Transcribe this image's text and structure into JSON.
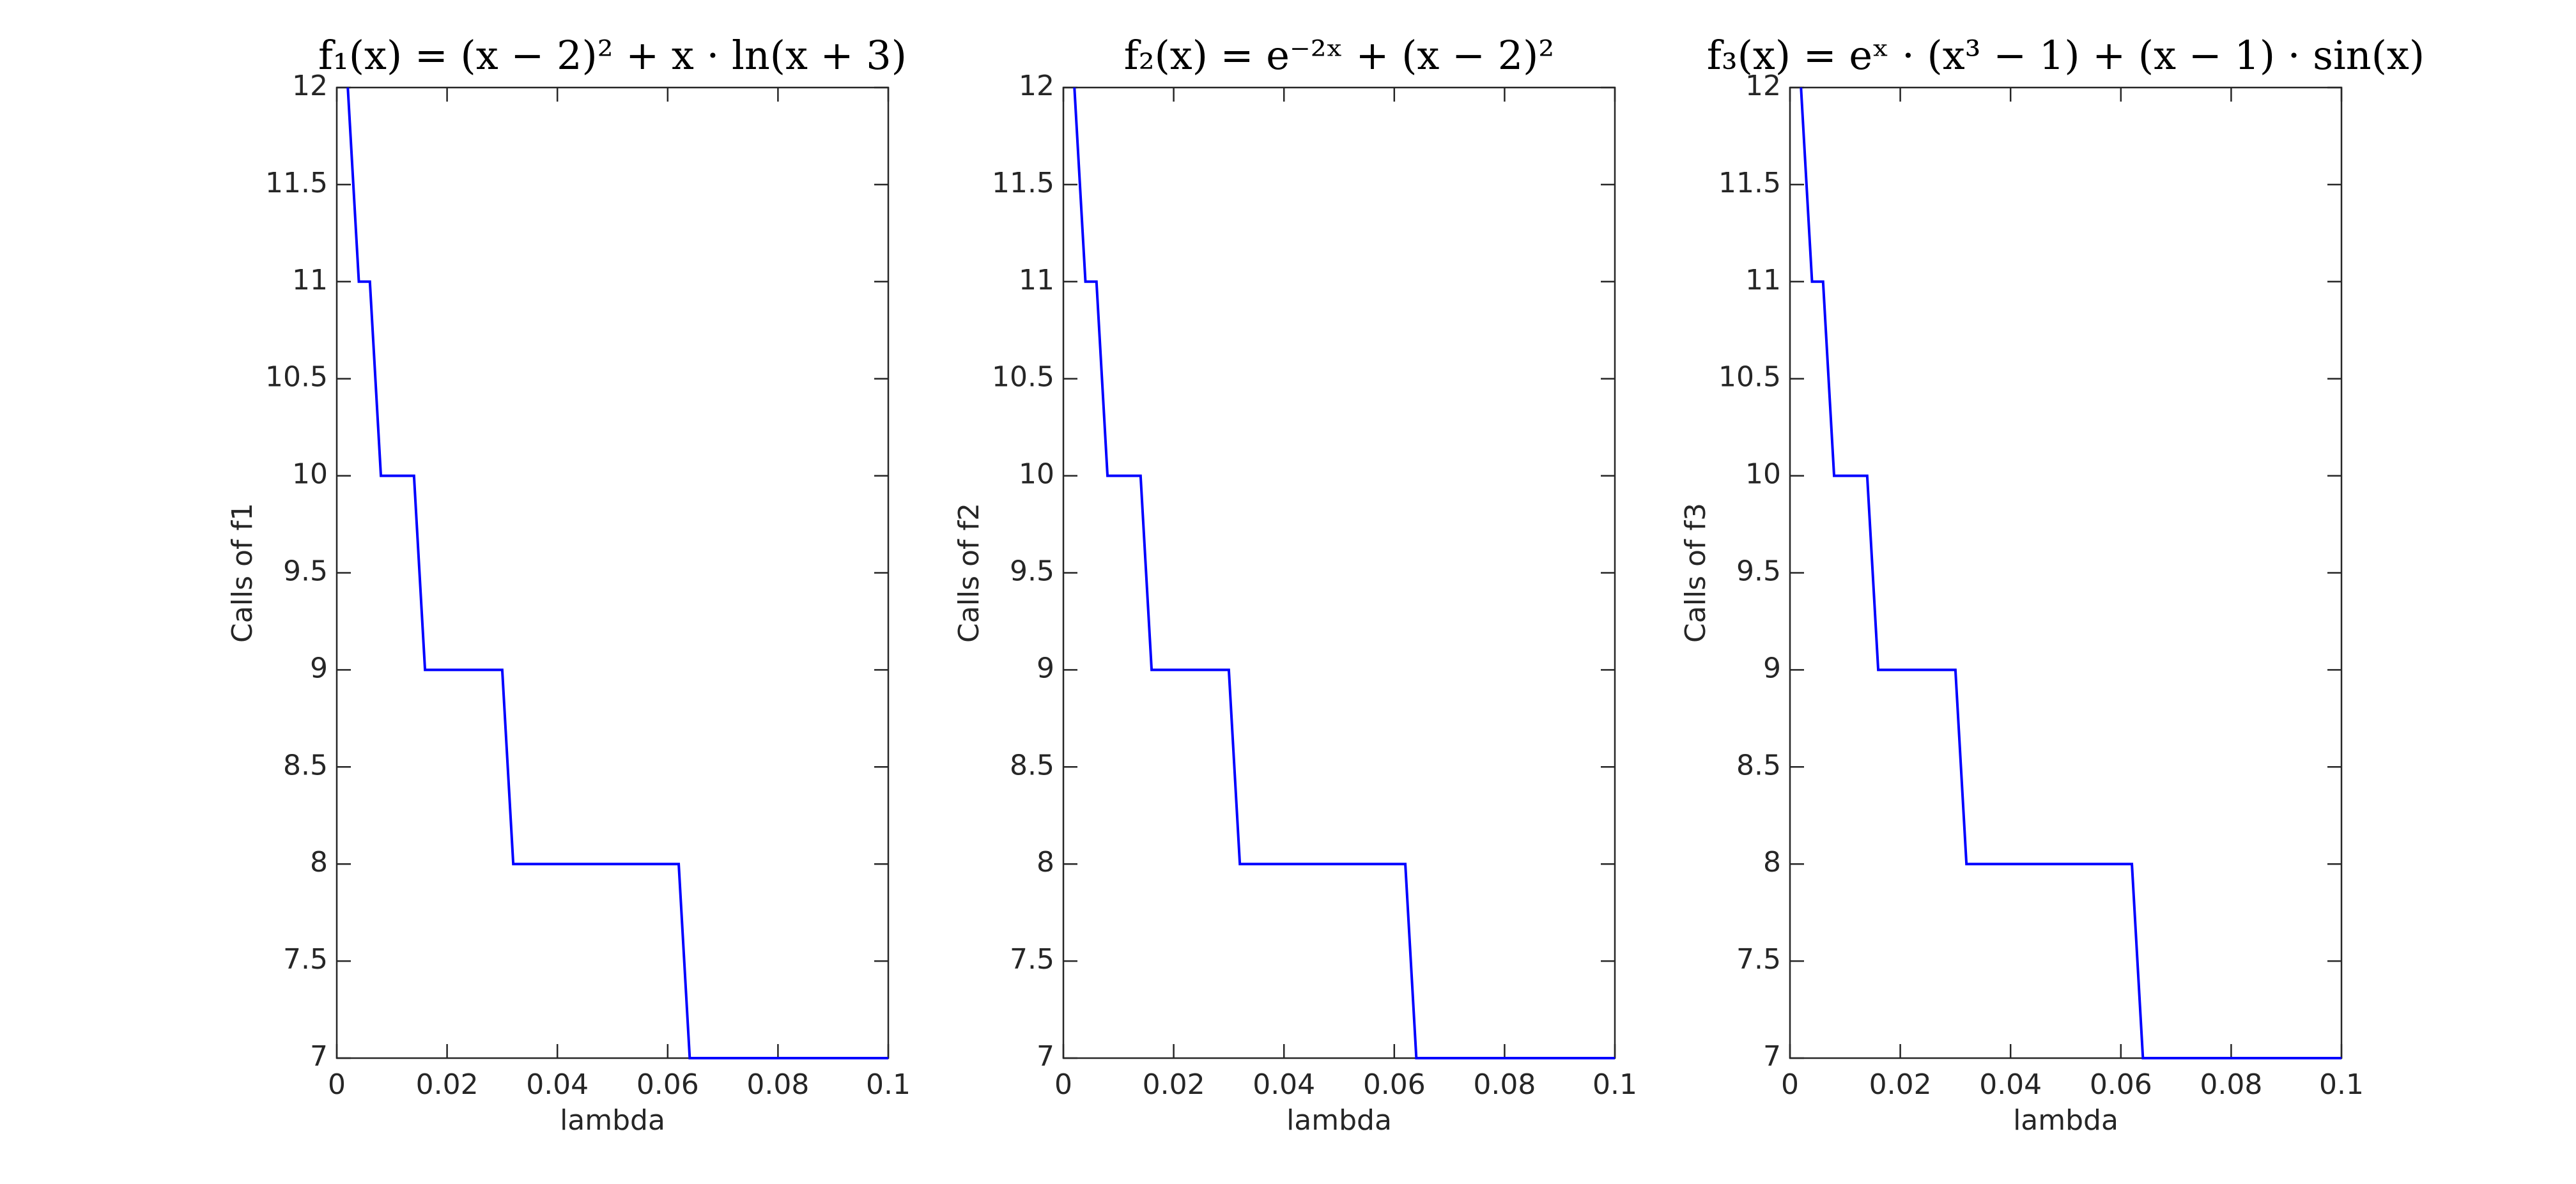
{
  "chart_data": [
    {
      "type": "line",
      "title": "f₁(x) = (x − 2)² + x · ln(x + 3)",
      "xlabel": "lambda",
      "ylabel": "Calls of f1",
      "x": [
        0.002,
        0.004,
        0.006,
        0.008,
        0.014,
        0.016,
        0.03,
        0.032,
        0.062,
        0.064,
        0.1
      ],
      "values": [
        12,
        11,
        11,
        10,
        10,
        9,
        9,
        8,
        8,
        7,
        7
      ],
      "color": "#0000ff",
      "xlim": [
        0,
        0.1
      ],
      "xticks": [
        0,
        0.02,
        0.04,
        0.06,
        0.08,
        0.1
      ],
      "ylim": [
        7,
        12
      ],
      "yticks": [
        7,
        7.5,
        8,
        8.5,
        9,
        9.5,
        10,
        10.5,
        11,
        11.5,
        12
      ]
    },
    {
      "type": "line",
      "title": "f₂(x) = e⁻²ˣ + (x − 2)²",
      "xlabel": "lambda",
      "ylabel": "Calls of f2",
      "x": [
        0.002,
        0.004,
        0.006,
        0.008,
        0.014,
        0.016,
        0.03,
        0.032,
        0.062,
        0.064,
        0.1
      ],
      "values": [
        12,
        11,
        11,
        10,
        10,
        9,
        9,
        8,
        8,
        7,
        7
      ],
      "color": "#0000ff",
      "xlim": [
        0,
        0.1
      ],
      "xticks": [
        0,
        0.02,
        0.04,
        0.06,
        0.08,
        0.1
      ],
      "ylim": [
        7,
        12
      ],
      "yticks": [
        7,
        7.5,
        8,
        8.5,
        9,
        9.5,
        10,
        10.5,
        11,
        11.5,
        12
      ]
    },
    {
      "type": "line",
      "title": "f₃(x) = eˣ · (x³ − 1) + (x − 1) · sin(x)",
      "xlabel": "lambda",
      "ylabel": "Calls of f3",
      "x": [
        0.002,
        0.004,
        0.006,
        0.008,
        0.014,
        0.016,
        0.03,
        0.032,
        0.062,
        0.064,
        0.1
      ],
      "values": [
        12,
        11,
        11,
        10,
        10,
        9,
        9,
        8,
        8,
        7,
        7
      ],
      "color": "#0000ff",
      "xlim": [
        0,
        0.1
      ],
      "xticks": [
        0,
        0.02,
        0.04,
        0.06,
        0.08,
        0.1
      ],
      "ylim": [
        7,
        12
      ],
      "yticks": [
        7,
        7.5,
        8,
        8.5,
        9,
        9.5,
        10,
        10.5,
        11,
        11.5,
        12
      ]
    }
  ]
}
